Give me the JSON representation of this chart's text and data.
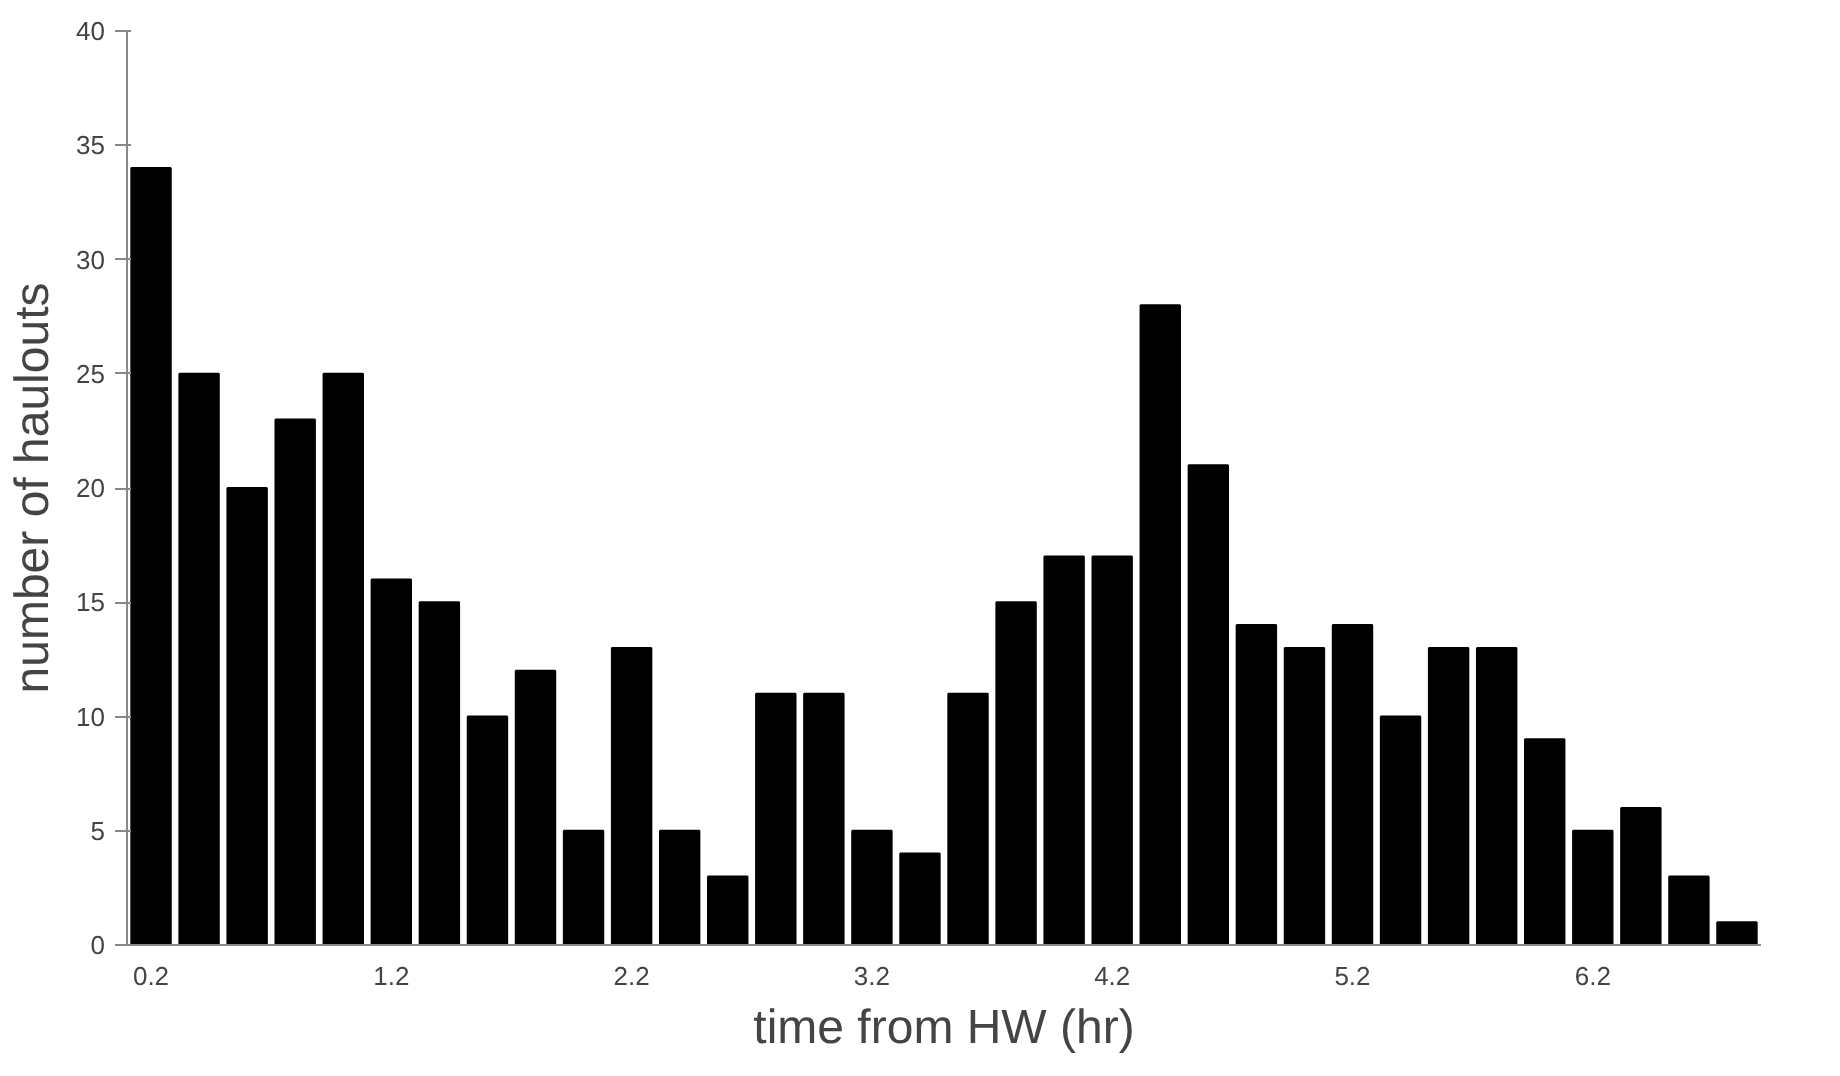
{
  "chart_data": {
    "type": "bar",
    "xlabel": "time from HW (hr)",
    "ylabel": "number of haulouts",
    "categories": [
      "0.2",
      null,
      null,
      null,
      null,
      "1.2",
      null,
      null,
      null,
      null,
      "2.2",
      null,
      null,
      null,
      null,
      "3.2",
      null,
      null,
      null,
      null,
      "4.2",
      null,
      null,
      null,
      null,
      "5.2",
      null,
      null,
      null,
      null,
      "6.2",
      null,
      null,
      null
    ],
    "values": [
      34,
      25,
      20,
      23,
      25,
      16,
      15,
      10,
      12,
      5,
      13,
      5,
      3,
      11,
      11,
      5,
      4,
      11,
      15,
      17,
      17,
      28,
      21,
      14,
      13,
      14,
      10,
      13,
      13,
      9,
      5,
      6,
      3,
      1
    ],
    "color": "#000000",
    "ylim": [
      0,
      40
    ],
    "yticks": [
      0,
      5,
      10,
      15,
      20,
      25,
      30,
      35,
      40
    ],
    "grid": false
  }
}
